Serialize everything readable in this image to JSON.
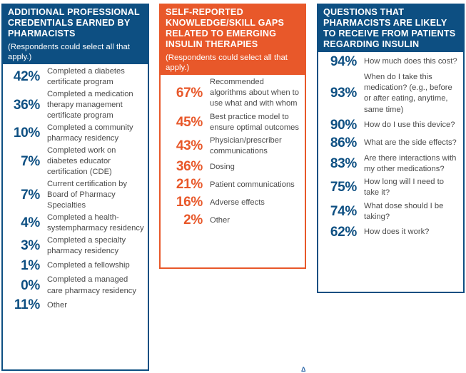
{
  "colors": {
    "blue": "#0d4f82",
    "orange": "#e8582a",
    "text": "#4a4a4a"
  },
  "panel1": {
    "title": "ADDITIONAL PROFESSIONAL CREDENTIALS EARNED BY PHARMACISTS",
    "subtitle": "(Respondents could select all that apply.)",
    "items": [
      {
        "pct": "42%",
        "label": "Completed a diabetes certificate program"
      },
      {
        "pct": "36%",
        "label": "Completed a medication therapy management certificate program"
      },
      {
        "pct": "10%",
        "label": "Completed a community pharmacy residency"
      },
      {
        "pct": "7%",
        "label": "Completed work on diabetes educator certification (CDE)"
      },
      {
        "pct": "7%",
        "label": "Current certification by Board of Pharmacy Specialties"
      },
      {
        "pct": "4%",
        "label": "Completed a health-systempharmacy residency"
      },
      {
        "pct": "3%",
        "label": "Completed a specialty pharmacy residency"
      },
      {
        "pct": "1%",
        "label": "Completed a fellowship"
      },
      {
        "pct": "0%",
        "label": "Completed a managed care pharmacy residency"
      },
      {
        "pct": "11%",
        "label": "Other"
      }
    ]
  },
  "panel2": {
    "title": "SELF-REPORTED KNOWLEDGE/SKILL GAPS RELATED TO EMERGING INSULIN THERAPIES",
    "subtitle": "(Respondents could select all that apply.)",
    "items": [
      {
        "pct": "67%",
        "label": "Recommended algorithms about when to use what and with whom"
      },
      {
        "pct": "45%",
        "label": "Best practice model to ensure optimal outcomes"
      },
      {
        "pct": "43%",
        "label": "Physician/prescriber communications"
      },
      {
        "pct": "36%",
        "label": "Dosing"
      },
      {
        "pct": "21%",
        "label": "Patient communications"
      },
      {
        "pct": "16%",
        "label": "Adverse effects"
      },
      {
        "pct": "2%",
        "label": "Other"
      }
    ]
  },
  "panel3": {
    "title": "QUESTIONS THAT PHARMACISTS ARE LIKELY TO RECEIVE FROM PATIENTS REGARDING INSULIN",
    "items": [
      {
        "pct": "94%",
        "label": "How much does this cost?"
      },
      {
        "pct": "93%",
        "label": "When do I take this medication? (e.g., before or after eating, anytime, same time)"
      },
      {
        "pct": "90%",
        "label": "How do I use this device?"
      },
      {
        "pct": "86%",
        "label": "What are the side effects?"
      },
      {
        "pct": "83%",
        "label": "Are there interactions with my other medications?"
      },
      {
        "pct": "75%",
        "label": "How long will I need to take it?"
      },
      {
        "pct": "74%",
        "label": "What dose should I be taking?"
      },
      {
        "pct": "62%",
        "label": "How does it work?"
      }
    ]
  },
  "footer": {
    "logo": "Δ"
  }
}
